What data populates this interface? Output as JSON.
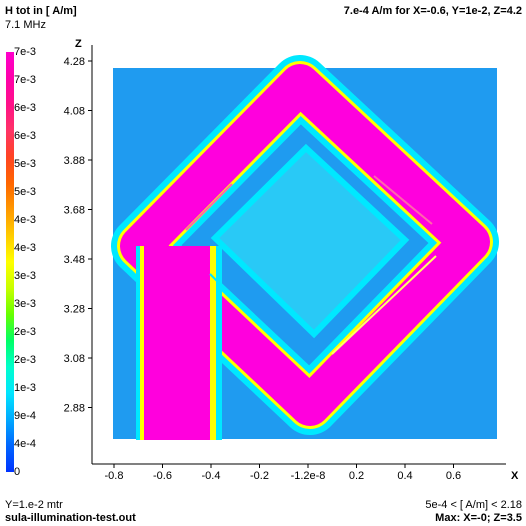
{
  "header": {
    "title": "H tot in [ A/m]",
    "frequency": "7.1 MHz",
    "probe": "7.e-4  A/m for X=-0.6, Y=1e-2, Z=4.2"
  },
  "legend": {
    "ticks": [
      "7e-3",
      "7e-3",
      "6e-3",
      "6e-3",
      "5e-3",
      "5e-3",
      "4e-3",
      "4e-3",
      "3e-3",
      "3e-3",
      "2e-3",
      "2e-3",
      "1e-3",
      "9e-4",
      "4e-4",
      "0"
    ],
    "colors": [
      "#ff00cc",
      "#ff00aa",
      "#ff1188",
      "#ff3366",
      "#ff4422",
      "#ff6600",
      "#ff9900",
      "#ffcc00",
      "#ffff00",
      "#c8ff00",
      "#66ff00",
      "#00ff66",
      "#00ffcc",
      "#00e5ff",
      "#00aaff",
      "#0066ff",
      "#0033ff"
    ]
  },
  "axes": {
    "z_label": "Z",
    "x_label": "X",
    "z_ticks": [
      "4.28",
      "4.08",
      "3.88",
      "3.68",
      "3.48",
      "3.28",
      "3.08",
      "2.88"
    ],
    "x_ticks": [
      "-0.8",
      "-0.6",
      "-0.4",
      "-0.2",
      "-1.2e-8",
      "0.2",
      "0.4",
      "0.6"
    ]
  },
  "footer": {
    "y_info": "Y=1.e-2 mtr",
    "filename": "sula-illumination-test.out",
    "range": "5e-4 < [ A/m] < 2.18",
    "max": "Max: X=-0; Z=3.5"
  },
  "colors": {
    "background": "#1f9bf0",
    "field_high": "#ff00dd",
    "field_mid": "#ffff00",
    "field_low": "#00e8ff"
  }
}
